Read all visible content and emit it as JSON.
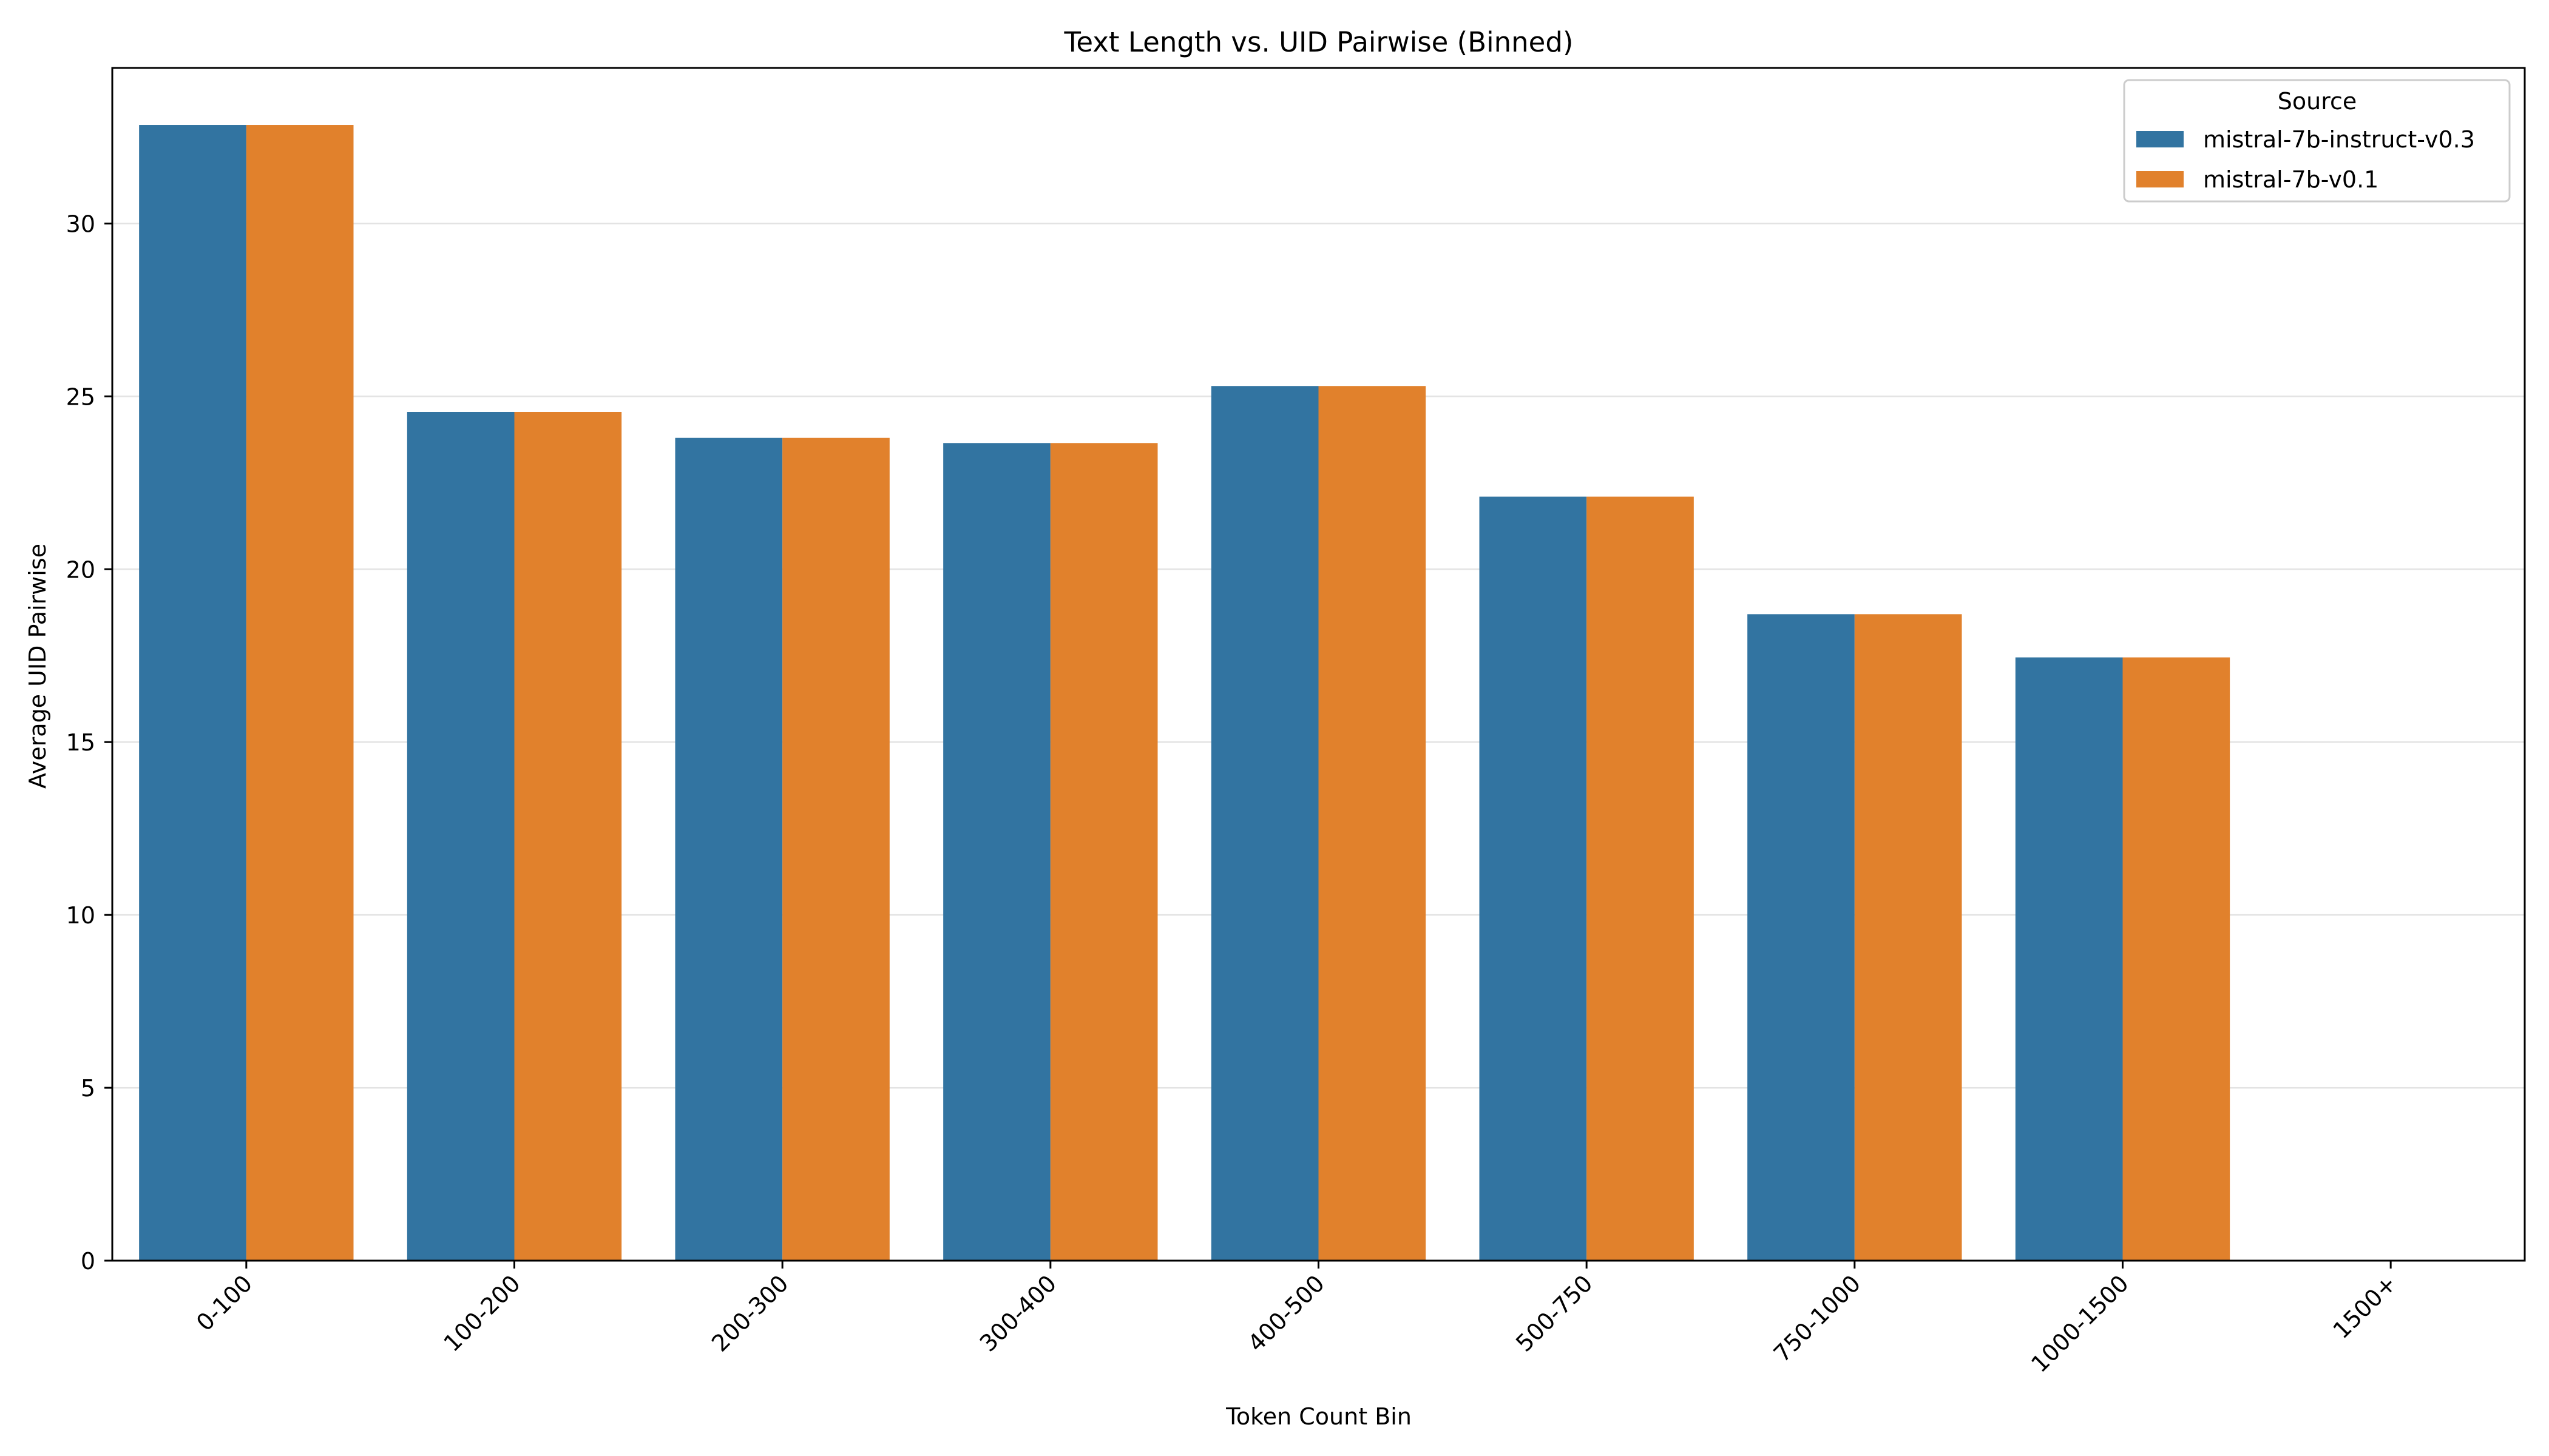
{
  "chart_data": {
    "type": "bar",
    "title": "Text Length vs. UID Pairwise (Binned)",
    "xlabel": "Token Count Bin",
    "ylabel": "Average UID Pairwise",
    "categories": [
      "0-100",
      "100-200",
      "200-300",
      "300-400",
      "400-500",
      "500-750",
      "750-1000",
      "1000-1500",
      "1500+"
    ],
    "ylim": [
      0,
      34.5
    ],
    "yticks": [
      0,
      5,
      10,
      15,
      20,
      25,
      30
    ],
    "grid": "horizontal",
    "legend": {
      "title": "Source",
      "placement": "top-right"
    },
    "series": [
      {
        "name": "mistral-7b-instruct-v0.3",
        "color": "#3274a1",
        "values": [
          32.85,
          24.55,
          23.8,
          23.65,
          25.3,
          22.1,
          18.7,
          17.45,
          null
        ]
      },
      {
        "name": "mistral-7b-v0.1",
        "color": "#e1812c",
        "values": [
          32.85,
          24.55,
          23.8,
          23.65,
          25.3,
          22.1,
          18.7,
          17.45,
          null
        ]
      }
    ]
  }
}
